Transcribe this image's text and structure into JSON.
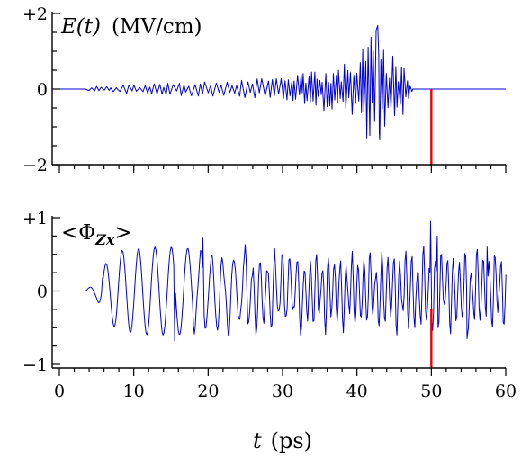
{
  "colors": {
    "trace": "#0000dd",
    "marker": "#ee0000",
    "axes": "#000000"
  },
  "chart_data": [
    {
      "type": "line",
      "panel": "top",
      "title_italic": "E(t)",
      "title_units": "(MV/cm)",
      "xlim": [
        0,
        60
      ],
      "ylim": [
        -2,
        2
      ],
      "xticks": [
        0,
        10,
        20,
        30,
        40,
        50,
        60
      ],
      "yticks": [
        -2,
        0,
        2
      ],
      "ytick_labels": [
        "−2",
        "0",
        "+2"
      ],
      "marker_x": 50,
      "signal": {
        "start": 3.5,
        "end": 47.5,
        "envelope": [
          [
            3.5,
            0.05
          ],
          [
            10,
            0.12
          ],
          [
            20,
            0.18
          ],
          [
            30,
            0.28
          ],
          [
            36,
            0.55
          ],
          [
            40,
            0.75
          ],
          [
            42.5,
            1.6
          ],
          [
            44,
            0.9
          ],
          [
            46.5,
            0.6
          ],
          [
            47.5,
            0.03
          ]
        ],
        "peak": {
          "x": 42.8,
          "y": 1.68
        },
        "trough": {
          "x": 43.0,
          "y": -1.17
        }
      }
    },
    {
      "type": "line",
      "panel": "bottom",
      "title_text": "<Φ",
      "title_sub": "Zx",
      "title_close": ">",
      "xlim": [
        0,
        60
      ],
      "ylim": [
        -1,
        1
      ],
      "xticks": [
        0,
        10,
        20,
        30,
        40,
        50,
        60
      ],
      "xtick_labels": [
        "0",
        "10",
        "20",
        "30",
        "40",
        "50",
        "60"
      ],
      "yticks": [
        -1,
        0,
        1
      ],
      "ytick_labels": [
        "−1",
        "0",
        "+1"
      ],
      "xlabel_italic": "t",
      "xlabel_units": "(ps)",
      "marker_x": 50,
      "signal": {
        "start": 3.5,
        "end": 60,
        "envelope": [
          [
            3.5,
            0.02
          ],
          [
            5,
            0.1
          ],
          [
            6,
            0.35
          ],
          [
            8,
            0.55
          ],
          [
            12,
            0.6
          ],
          [
            16,
            0.6
          ],
          [
            20,
            0.55
          ],
          [
            30,
            0.45
          ],
          [
            40,
            0.45
          ],
          [
            50,
            0.5
          ],
          [
            60,
            0.45
          ]
        ],
        "features": [
          {
            "x": 5.8,
            "y": 0.18
          },
          {
            "x": 15.5,
            "y": -0.68
          },
          {
            "x": 19.3,
            "y": 0.72
          },
          {
            "x": 49.9,
            "y": 0.95
          },
          {
            "x": 50.3,
            "y": -0.29
          },
          {
            "x": 50.8,
            "y": 0.75
          },
          {
            "x": 54.8,
            "y": -0.65
          },
          {
            "x": 57.5,
            "y": 0.6
          }
        ]
      }
    }
  ]
}
